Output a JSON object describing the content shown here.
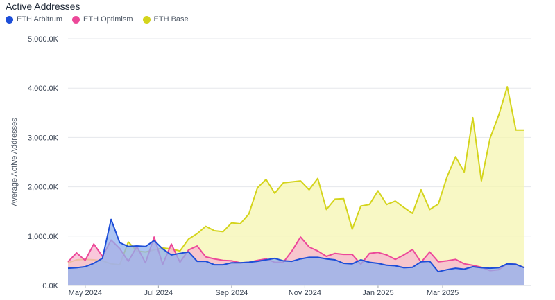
{
  "title": "Active Addresses",
  "chart_data": {
    "type": "area",
    "title": "Active Addresses",
    "xlabel": "",
    "ylabel": "Average Active Addresses",
    "ylim": [
      0,
      5000
    ],
    "y_unit": "K",
    "y_ticks": [
      0,
      1000,
      2000,
      3000,
      4000,
      5000
    ],
    "y_tick_labels": [
      "0.0K",
      "1,000.0K",
      "2,000.0K",
      "3,000.0K",
      "4,000.0K",
      "5,000.0K"
    ],
    "x_tick_labels": [
      "May 2024",
      "Jul 2024",
      "Sep 2024",
      "Nov 2024",
      "Jan 2025",
      "Mar 2025"
    ],
    "x_tick_index": [
      2,
      10.5,
      19,
      27.5,
      36,
      43.5
    ],
    "x_count": 54,
    "grid": true,
    "legend_position": "top-left",
    "series": [
      {
        "name": "ETH Arbitrum",
        "color": "#1d4ed8",
        "fill": "#8fb0ee",
        "values": [
          350,
          360,
          380,
          450,
          550,
          1340,
          870,
          790,
          800,
          790,
          910,
          740,
          620,
          650,
          680,
          490,
          490,
          420,
          420,
          460,
          460,
          470,
          490,
          520,
          550,
          500,
          490,
          540,
          570,
          570,
          540,
          520,
          450,
          440,
          520,
          470,
          450,
          410,
          400,
          360,
          370,
          480,
          490,
          280,
          320,
          350,
          330,
          380,
          360,
          350,
          360,
          440,
          430,
          360
        ]
      },
      {
        "name": "ETH Optimism",
        "color": "#ec4899",
        "fill": "#f7b5cf",
        "values": [
          480,
          660,
          510,
          840,
          590,
          920,
          750,
          490,
          790,
          460,
          980,
          430,
          840,
          470,
          720,
          800,
          580,
          540,
          510,
          500,
          460,
          470,
          510,
          540,
          470,
          470,
          700,
          980,
          780,
          700,
          590,
          650,
          630,
          630,
          430,
          650,
          670,
          620,
          530,
          620,
          730,
          470,
          680,
          480,
          500,
          530,
          440,
          410,
          370,
          300,
          320,
          440,
          430,
          360
        ]
      },
      {
        "name": "ETH Base",
        "color": "#d4d41c",
        "fill": "#f6f6b2",
        "values": [
          460,
          520,
          530,
          520,
          500,
          440,
          420,
          880,
          700,
          680,
          720,
          760,
          740,
          700,
          940,
          1050,
          1200,
          1110,
          1090,
          1270,
          1250,
          1450,
          1980,
          2150,
          1870,
          2080,
          2100,
          2120,
          1940,
          2170,
          1540,
          1750,
          1760,
          1140,
          1610,
          1640,
          1920,
          1640,
          1710,
          1580,
          1460,
          1940,
          1540,
          1650,
          2200,
          2610,
          2300,
          3400,
          2120,
          2980,
          3450,
          4030,
          3150,
          3150
        ]
      }
    ]
  }
}
